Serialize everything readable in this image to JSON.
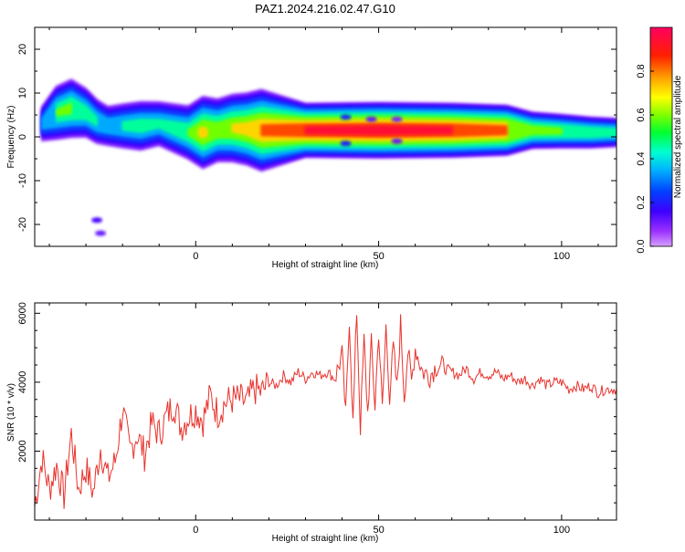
{
  "chart_data": [
    {
      "type": "heatmap",
      "title": "PAZ1.2024.216.02.47.G10",
      "xlabel": "Height of straight line (km)",
      "ylabel": "Frequency (Hz)",
      "xlim": [
        -44,
        115
      ],
      "ylim": [
        -25,
        25
      ],
      "xticks": [
        0,
        50,
        100
      ],
      "yticks": [
        -20,
        -10,
        0,
        10,
        20
      ],
      "colorbar": {
        "label": "Normalized spectral amplitude",
        "range": [
          0,
          1
        ],
        "ticks": [
          0.0,
          0.2,
          0.4,
          0.6,
          0.8
        ],
        "colormap": "rainbow"
      },
      "ridge": [
        {
          "x": -42,
          "f": 3.0,
          "amp": 0.35
        },
        {
          "x": -38,
          "f": 5.5,
          "amp": 0.55
        },
        {
          "x": -34,
          "f": 6.5,
          "amp": 0.6
        },
        {
          "x": -30,
          "f": 5.5,
          "amp": 0.5
        },
        {
          "x": -27,
          "f": 3.5,
          "amp": 0.45
        },
        {
          "x": -24,
          "f": 2.5,
          "amp": 0.4
        },
        {
          "x": -20,
          "f": 2.5,
          "amp": 0.45
        },
        {
          "x": -15,
          "f": 2.5,
          "amp": 0.5
        },
        {
          "x": -10,
          "f": 3.0,
          "amp": 0.45
        },
        {
          "x": -6,
          "f": 2.0,
          "amp": 0.5
        },
        {
          "x": -2,
          "f": 1.0,
          "amp": 0.55
        },
        {
          "x": 2,
          "f": 1.0,
          "amp": 0.75
        },
        {
          "x": 6,
          "f": 1.5,
          "amp": 0.65
        },
        {
          "x": 10,
          "f": 2.0,
          "amp": 0.7
        },
        {
          "x": 14,
          "f": 1.8,
          "amp": 0.75
        },
        {
          "x": 18,
          "f": 1.5,
          "amp": 0.85
        },
        {
          "x": 30,
          "f": 1.5,
          "amp": 0.92
        },
        {
          "x": 50,
          "f": 1.5,
          "amp": 0.95
        },
        {
          "x": 70,
          "f": 1.5,
          "amp": 0.92
        },
        {
          "x": 85,
          "f": 1.5,
          "amp": 0.85
        },
        {
          "x": 92,
          "f": 1.5,
          "amp": 0.6
        },
        {
          "x": 100,
          "f": 1.3,
          "amp": 0.55
        },
        {
          "x": 108,
          "f": 1.0,
          "amp": 0.5
        },
        {
          "x": 115,
          "f": 1.0,
          "amp": 0.45
        }
      ],
      "blobs": [
        {
          "x": -27,
          "f": -19,
          "amp": 0.15
        },
        {
          "x": -26,
          "f": -22,
          "amp": 0.12
        },
        {
          "x": 41,
          "f": 4.5,
          "amp": 0.22
        },
        {
          "x": 41,
          "f": -1.5,
          "amp": 0.2
        },
        {
          "x": 48,
          "f": 4.0,
          "amp": 0.12
        },
        {
          "x": 55,
          "f": 4.0,
          "amp": 0.1
        },
        {
          "x": 55,
          "f": -1.0,
          "amp": 0.12
        }
      ]
    },
    {
      "type": "line",
      "xlabel": "Height of straight line (km)",
      "ylabel": "SNR (10 * v/v)",
      "xlim": [
        -44,
        115
      ],
      "ylim": [
        0,
        6300
      ],
      "xticks": [
        0,
        50,
        100
      ],
      "yticks": [
        2000,
        4000,
        6000
      ],
      "series": [
        {
          "color": "#e8322c",
          "x": [
            -44,
            -42,
            -40,
            -38,
            -36,
            -34,
            -32,
            -30,
            -28,
            -26,
            -24,
            -22,
            -20,
            -18,
            -16,
            -14,
            -12,
            -10,
            -8,
            -6,
            -4,
            -2,
            0,
            2,
            4,
            6,
            8,
            10,
            12,
            14,
            16,
            18,
            20,
            22,
            24,
            26,
            28,
            30,
            32,
            34,
            36,
            38,
            40,
            41,
            42,
            43,
            44,
            45,
            46,
            47,
            48,
            49,
            50,
            51,
            52,
            53,
            54,
            55,
            56,
            57,
            58,
            59,
            60,
            62,
            64,
            66,
            68,
            70,
            72,
            74,
            76,
            78,
            80,
            82,
            84,
            86,
            88,
            90,
            92,
            94,
            96,
            98,
            100,
            102,
            104,
            106,
            108,
            110,
            112,
            115
          ],
          "values": [
            400,
            1800,
            900,
            1600,
            700,
            2500,
            900,
            1500,
            800,
            2100,
            1200,
            1700,
            3200,
            2000,
            2500,
            1900,
            2800,
            2500,
            3000,
            3400,
            2700,
            3000,
            3200,
            2900,
            3600,
            3100,
            3400,
            3500,
            3500,
            3400,
            3800,
            3700,
            4000,
            3900,
            4200,
            4000,
            4300,
            4100,
            4300,
            4200,
            4300,
            4100,
            4800,
            3000,
            5900,
            2800,
            6100,
            2700,
            5200,
            3100,
            5100,
            3300,
            5500,
            3200,
            5600,
            3600,
            5000,
            3800,
            5700,
            3600,
            4900,
            4000,
            5000,
            4300,
            4200,
            4500,
            4400,
            4300,
            4200,
            4400,
            4100,
            4300,
            4200,
            4300,
            4100,
            4200,
            4000,
            4100,
            3900,
            4100,
            3900,
            4000,
            4000,
            3800,
            3900,
            3800,
            3900,
            3700,
            3800,
            3800
          ]
        }
      ]
    }
  ]
}
